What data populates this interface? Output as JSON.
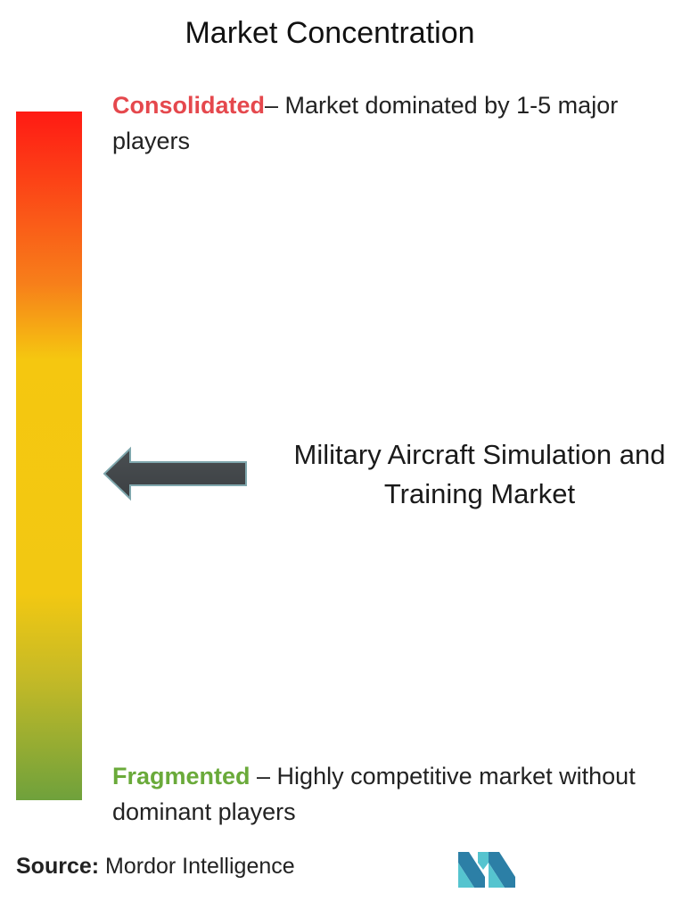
{
  "title": "Market Concentration",
  "consolidated": {
    "keyword": "Consolidated",
    "description": "– Market dominated by 1-5 major players",
    "color": "#e5484d"
  },
  "fragmented": {
    "keyword": "Fragmented",
    "description": " – Highly competitive market without dominant players",
    "color": "#6aaa3a"
  },
  "market": {
    "name": "Military Aircraft Simulation and Training Market"
  },
  "source": {
    "label": "Source:",
    "text": " Mordor Intelligence"
  },
  "icons": {
    "arrow": "left-arrow-icon",
    "logo": "mordor-intelligence-logo"
  },
  "chart_data": {
    "type": "gradient-scale",
    "scale_top": "Consolidated",
    "scale_bottom": "Fragmented",
    "gradient_colors": [
      "#ff1a14",
      "#f77f1a",
      "#f5c710",
      "#f2c812",
      "#c6ba26",
      "#6fa13c"
    ],
    "marker_position_fraction_from_top": 0.54
  }
}
